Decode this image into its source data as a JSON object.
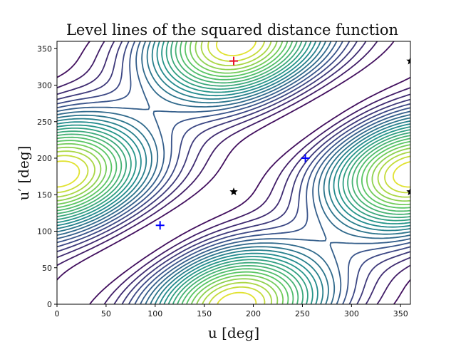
{
  "chart_data": {
    "type": "contour",
    "title": "Level lines of the squared distance function",
    "xlabel": "u [deg]",
    "ylabel": "u′ [deg]",
    "xlim": [
      0,
      360
    ],
    "ylim": [
      0,
      360
    ],
    "xticks": [
      0,
      50,
      100,
      150,
      200,
      250,
      300,
      350
    ],
    "yticks": [
      0,
      50,
      100,
      150,
      200,
      250,
      300,
      350
    ],
    "grid": false,
    "colormap": [
      "#440154",
      "#3b528b",
      "#21908d",
      "#5dc863",
      "#fde725"
    ],
    "minima": [
      {
        "x": 105,
        "y": 108
      },
      {
        "x": 253,
        "y": 200
      }
    ],
    "minima_color": "#0000ff",
    "maximum": {
      "x": 180,
      "y": 333
    },
    "maximum_color": "#e8112d",
    "saddle_points": [
      {
        "x": 180,
        "y": 154
      },
      {
        "x": 360,
        "y": 154
      },
      {
        "x": 360,
        "y": 333
      }
    ],
    "saddle_color": "#000000"
  }
}
